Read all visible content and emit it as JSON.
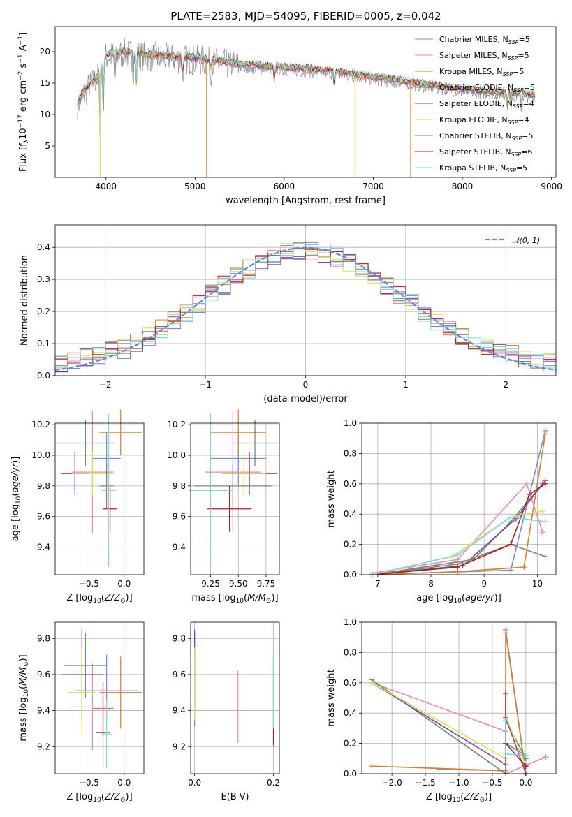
{
  "figure": {
    "title": "PLATE=2583, MJD=54095, FIBERID=0005, z=0.042"
  },
  "colors": {
    "Chabrier MILES": "#6a8fd6",
    "Salpeter MILES": "#e58ac0",
    "Kroupa MILES": "#e07b28",
    "Chabrier ELODIE": "#5f8c5f",
    "Salpeter ELODIE": "#8a3db0",
    "Kroupa ELODIE": "#d6e24a",
    "Chabrier STELIB": "#808080",
    "Salpeter STELIB": "#b01c1c",
    "Kroupa STELIB": "#7fd8dc",
    "normal": "#5b8ad6"
  },
  "chart_data": [
    {
      "id": "spectrum",
      "type": "line",
      "xlabel": "wavelength [Angstrom, rest frame]",
      "ylabel": "Flux [f",
      "xlim": [
        3430,
        9050
      ],
      "ylim": [
        0,
        24
      ],
      "xticks": [
        4000,
        5000,
        6000,
        7000,
        8000,
        9000
      ],
      "yticks": [
        5,
        10,
        15,
        20
      ],
      "legend_position": "upper-right",
      "legend": [
        {
          "name": "Chabrier MILES",
          "nssp": "=5"
        },
        {
          "name": "Salpeter MILES",
          "nssp": "=5"
        },
        {
          "name": "Kroupa MILES",
          "nssp": "=5"
        },
        {
          "name": "Chabrier ELODIE",
          "nssp": "=5"
        },
        {
          "name": "Salpeter ELODIE",
          "nssp": "=4"
        },
        {
          "name": "Kroupa ELODIE",
          "nssp": "=4"
        },
        {
          "name": "Chabrier STELIB",
          "nssp": "=5"
        },
        {
          "name": "Salpeter STELIB",
          "nssp": "=6"
        },
        {
          "name": "Kroupa STELIB",
          "nssp": "=5"
        }
      ],
      "continuum": [
        [
          3680,
          12
        ],
        [
          3800,
          14.5
        ],
        [
          3900,
          16
        ],
        [
          4000,
          19.5
        ],
        [
          4200,
          20
        ],
        [
          4500,
          19.5
        ],
        [
          5000,
          19
        ],
        [
          5500,
          18
        ],
        [
          6000,
          17.5
        ],
        [
          6500,
          17
        ],
        [
          7000,
          16
        ],
        [
          7500,
          15
        ],
        [
          8000,
          14
        ],
        [
          8500,
          13.5
        ],
        [
          8820,
          13.2
        ]
      ]
    },
    {
      "id": "residuals",
      "type": "histogram",
      "xlabel": "(data-model)/error",
      "ylabel": "Normed distribution",
      "xlim": [
        -2.5,
        2.5
      ],
      "ylim": [
        0,
        0.47
      ],
      "xticks": [
        -2,
        -1,
        0,
        1,
        2
      ],
      "yticks": [
        0.0,
        0.1,
        0.2,
        0.3,
        0.4
      ],
      "legend_position": "upper-right",
      "normal_label": "𝒩(0, 1)",
      "bin_width": 0.125
    },
    {
      "id": "age-vs-Z",
      "type": "errorbar",
      "xlabel": "Z [log",
      "ylabel": "age  [log",
      "xlim": [
        -0.98,
        0.28
      ],
      "ylim": [
        9.22,
        10.21
      ],
      "xticks": [
        -0.5,
        0.0
      ],
      "yticks": [
        9.4,
        9.6,
        9.8,
        10.0,
        10.2
      ],
      "points": [
        {
          "model": "Chabrier MILES",
          "x": -0.25,
          "xerr": 0.2,
          "y": 9.98,
          "yerr": 0.17
        },
        {
          "model": "Salpeter MILES",
          "x": -0.45,
          "xerr": 0.3,
          "y": 9.89,
          "yerr": 0.4
        },
        {
          "model": "Kroupa MILES",
          "x": -0.05,
          "xerr": 0.3,
          "y": 10.15,
          "yerr": 0.15
        },
        {
          "model": "Chabrier ELODIE",
          "x": -0.55,
          "xerr": 0.42,
          "y": 10.08,
          "yerr": 0.15
        },
        {
          "model": "Salpeter ELODIE",
          "x": -0.7,
          "xerr": 0.2,
          "y": 9.88,
          "yerr": 0.14
        },
        {
          "model": "Kroupa ELODIE",
          "x": -0.45,
          "xerr": 0.3,
          "y": 9.88,
          "yerr": 0.14
        },
        {
          "model": "Chabrier STELIB",
          "x": -0.25,
          "xerr": 0.1,
          "y": 9.8,
          "yerr": 0.15
        },
        {
          "model": "Salpeter STELIB",
          "x": -0.2,
          "xerr": 0.1,
          "y": 9.65,
          "yerr": 0.15
        },
        {
          "model": "Kroupa STELIB",
          "x": -0.22,
          "xerr": 0.1,
          "y": 9.77,
          "yerr": 0.5
        }
      ]
    },
    {
      "id": "age-vs-mass",
      "type": "errorbar",
      "xlabel": "mass [log",
      "ylabel": "",
      "xlim": [
        9.07,
        9.87
      ],
      "ylim": [
        9.22,
        10.21
      ],
      "xticks": [
        9.25,
        9.5,
        9.75
      ],
      "yticks": [
        9.4,
        9.6,
        9.8,
        10.0,
        10.2
      ],
      "points": [
        {
          "model": "Chabrier MILES",
          "x": 9.5,
          "xerr": 0.25,
          "y": 9.98,
          "yerr": 0.17
        },
        {
          "model": "Salpeter MILES",
          "x": 9.45,
          "xerr": 0.25,
          "y": 9.89,
          "yerr": 0.4
        },
        {
          "model": "Kroupa MILES",
          "x": 9.5,
          "xerr": 0.25,
          "y": 10.15,
          "yerr": 0.15
        },
        {
          "model": "Chabrier ELODIE",
          "x": 9.65,
          "xerr": 0.2,
          "y": 10.08,
          "yerr": 0.15
        },
        {
          "model": "Salpeter ELODIE",
          "x": 9.6,
          "xerr": 0.25,
          "y": 9.88,
          "yerr": 0.14
        },
        {
          "model": "Kroupa ELODIE",
          "x": 9.55,
          "xerr": 0.2,
          "y": 9.88,
          "yerr": 0.14
        },
        {
          "model": "Chabrier STELIB",
          "x": 9.45,
          "xerr": 0.35,
          "y": 9.8,
          "yerr": 0.15
        },
        {
          "model": "Salpeter STELIB",
          "x": 9.42,
          "xerr": 0.2,
          "y": 9.65,
          "yerr": 0.15
        },
        {
          "model": "Kroupa STELIB",
          "x": 9.25,
          "xerr": 0.2,
          "y": 9.77,
          "yerr": 0.5
        }
      ]
    },
    {
      "id": "massweight-vs-age",
      "type": "line",
      "xlabel": "age  [log",
      "ylabel": "mass weight",
      "xlim": [
        6.7,
        10.35
      ],
      "ylim": [
        0,
        1.0
      ],
      "xticks": [
        7,
        8,
        9,
        10
      ],
      "yticks": [
        0.0,
        0.2,
        0.4,
        0.6,
        0.8,
        1.0
      ],
      "grid": true,
      "series": [
        {
          "model": "Chabrier MILES",
          "x": [
            6.9,
            9.5,
            10.15
          ],
          "y": [
            0.0,
            0.03,
            0.95
          ]
        },
        {
          "model": "Salpeter MILES",
          "x": [
            6.9,
            8.5,
            9.8,
            10.1
          ],
          "y": [
            0.01,
            0.1,
            0.6,
            0.28
          ]
        },
        {
          "model": "Kroupa MILES",
          "x": [
            6.9,
            8.5,
            9.75,
            10.15
          ],
          "y": [
            0.0,
            0.02,
            0.05,
            0.93
          ]
        },
        {
          "model": "Chabrier ELODIE",
          "x": [
            6.9,
            8.8,
            9.5,
            10.15
          ],
          "y": [
            0.0,
            0.1,
            0.35,
            0.62
          ]
        },
        {
          "model": "Salpeter ELODIE",
          "x": [
            6.9,
            8.6,
            9.6,
            10.1
          ],
          "y": [
            0.0,
            0.06,
            0.37,
            0.6
          ]
        },
        {
          "model": "Kroupa ELODIE",
          "x": [
            6.9,
            8.4,
            9.5,
            10.1
          ],
          "y": [
            0.0,
            0.12,
            0.38,
            0.42
          ]
        },
        {
          "model": "Chabrier STELIB",
          "x": [
            6.9,
            8.5,
            9.5,
            10.15
          ],
          "y": [
            0.0,
            0.07,
            0.2,
            0.12
          ]
        },
        {
          "model": "Salpeter STELIB",
          "x": [
            6.9,
            8.5,
            9.5,
            9.85,
            10.15
          ],
          "y": [
            0.0,
            0.05,
            0.2,
            0.53,
            0.6
          ]
        },
        {
          "model": "Kroupa STELIB",
          "x": [
            6.9,
            8.5,
            9.5,
            10.15
          ],
          "y": [
            0.0,
            0.13,
            0.38,
            0.35
          ]
        }
      ]
    },
    {
      "id": "mass-vs-Z",
      "type": "errorbar",
      "xlabel": "Z [log",
      "ylabel": "mass [log",
      "xlim": [
        -0.98,
        0.28
      ],
      "ylim": [
        9.05,
        9.89
      ],
      "xticks": [
        -0.5,
        0.0
      ],
      "yticks": [
        9.2,
        9.4,
        9.6,
        9.8
      ],
      "points": [
        {
          "model": "Chabrier MILES",
          "x": -0.25,
          "xerr": 0.45,
          "y": 9.51,
          "yerr": 0.2
        },
        {
          "model": "Salpeter MILES",
          "x": -0.45,
          "xerr": 0.3,
          "y": 9.42,
          "yerr": 0.24
        },
        {
          "model": "Kroupa MILES",
          "x": -0.05,
          "xerr": 0.3,
          "y": 9.5,
          "yerr": 0.2
        },
        {
          "model": "Chabrier ELODIE",
          "x": -0.55,
          "xerr": 0.3,
          "y": 9.65,
          "yerr": 0.18
        },
        {
          "model": "Salpeter ELODIE",
          "x": -0.6,
          "xerr": 0.3,
          "y": 9.6,
          "yerr": 0.25
        },
        {
          "model": "Kroupa ELODIE",
          "x": -0.6,
          "xerr": 0.2,
          "y": 9.5,
          "yerr": 0.25
        },
        {
          "model": "Chabrier STELIB",
          "x": -0.3,
          "xerr": 0.1,
          "y": 9.28,
          "yerr": 0.2
        },
        {
          "model": "Salpeter STELIB",
          "x": -0.3,
          "xerr": 0.15,
          "y": 9.41,
          "yerr": 0.15
        },
        {
          "model": "Kroupa STELIB",
          "x": -0.25,
          "xerr": 0.08,
          "y": 9.27,
          "yerr": 0.19
        }
      ]
    },
    {
      "id": "mass-vs-EBV",
      "type": "errorbar",
      "xlabel": "E(B-V)",
      "ylabel": "",
      "xlim": [
        -0.01,
        0.215
      ],
      "ylim": [
        9.05,
        9.89
      ],
      "xticks": [
        0.0,
        0.2
      ],
      "yticks": [
        9.2,
        9.4,
        9.6,
        9.8
      ],
      "points": [
        {
          "model": "Chabrier MILES",
          "x": 0.0,
          "xerr": 0,
          "y": 9.51,
          "yerr": 0.2
        },
        {
          "model": "Salpeter MILES",
          "x": 0.11,
          "xerr": 0,
          "y": 9.42,
          "yerr": 0.2
        },
        {
          "model": "Kroupa MILES",
          "x": 0.2,
          "xerr": 0,
          "y": 9.5,
          "yerr": 0.2
        },
        {
          "model": "Chabrier ELODIE",
          "x": 0.0,
          "xerr": 0,
          "y": 9.65,
          "yerr": 0.18
        },
        {
          "model": "Salpeter ELODIE",
          "x": 0.0,
          "xerr": 0,
          "y": 9.62,
          "yerr": 0.23
        },
        {
          "model": "Kroupa ELODIE",
          "x": 0.0,
          "xerr": 0,
          "y": 9.55,
          "yerr": 0.2
        },
        {
          "model": "Chabrier STELIB",
          "x": 0.2,
          "xerr": 0,
          "y": 9.45,
          "yerr": 0.25
        },
        {
          "model": "Salpeter STELIB",
          "x": 0.2,
          "xerr": 0,
          "y": 9.41,
          "yerr": 0.2
        },
        {
          "model": "Kroupa STELIB",
          "x": 0.2,
          "xerr": 0,
          "y": 9.52,
          "yerr": 0.22
        }
      ]
    },
    {
      "id": "massweight-vs-Z",
      "type": "line",
      "xlabel": "Z [log",
      "ylabel": "mass weight",
      "xlim": [
        -2.45,
        0.45
      ],
      "ylim": [
        0,
        1.0
      ],
      "xticks": [
        -2.0,
        -1.5,
        -1.0,
        -0.5,
        0.0
      ],
      "yticks": [
        0.0,
        0.2,
        0.4,
        0.6,
        0.8,
        1.0
      ],
      "grid": true,
      "series": [
        {
          "model": "Chabrier MILES",
          "x": [
            -1.3,
            -0.3,
            -0.3,
            0.0
          ],
          "y": [
            0.03,
            0.02,
            0.95,
            0.0
          ]
        },
        {
          "model": "Salpeter MILES",
          "x": [
            -2.3,
            -0.3,
            -0.3,
            0.3
          ],
          "y": [
            0.6,
            0.28,
            0.0,
            0.11
          ]
        },
        {
          "model": "Kroupa MILES",
          "x": [
            -2.3,
            -0.3,
            -0.3,
            0.0
          ],
          "y": [
            0.05,
            0.02,
            0.93,
            0.0
          ]
        },
        {
          "model": "Chabrier ELODIE",
          "x": [
            -2.3,
            -0.3,
            -0.3,
            0.0
          ],
          "y": [
            0.62,
            0.0,
            0.35,
            0.1
          ]
        },
        {
          "model": "Salpeter ELODIE",
          "x": [
            -2.3,
            -0.3,
            -0.3,
            0.0
          ],
          "y": [
            0.6,
            0.06,
            0.37,
            0.0
          ]
        },
        {
          "model": "Kroupa ELODIE",
          "x": [
            -2.3,
            -0.3,
            -0.3,
            0.0
          ],
          "y": [
            0.6,
            0.1,
            0.38,
            0.05
          ]
        },
        {
          "model": "Chabrier STELIB",
          "x": [
            -0.3,
            -0.3,
            0.0
          ],
          "y": [
            0.0,
            0.2,
            0.12
          ]
        },
        {
          "model": "Salpeter STELIB",
          "x": [
            -0.3,
            -0.3,
            0.0
          ],
          "y": [
            0.53,
            0.2,
            0.05
          ]
        },
        {
          "model": "Kroupa STELIB",
          "x": [
            -0.3,
            -0.3,
            0.0
          ],
          "y": [
            0.35,
            0.13,
            0.12
          ]
        }
      ]
    }
  ]
}
